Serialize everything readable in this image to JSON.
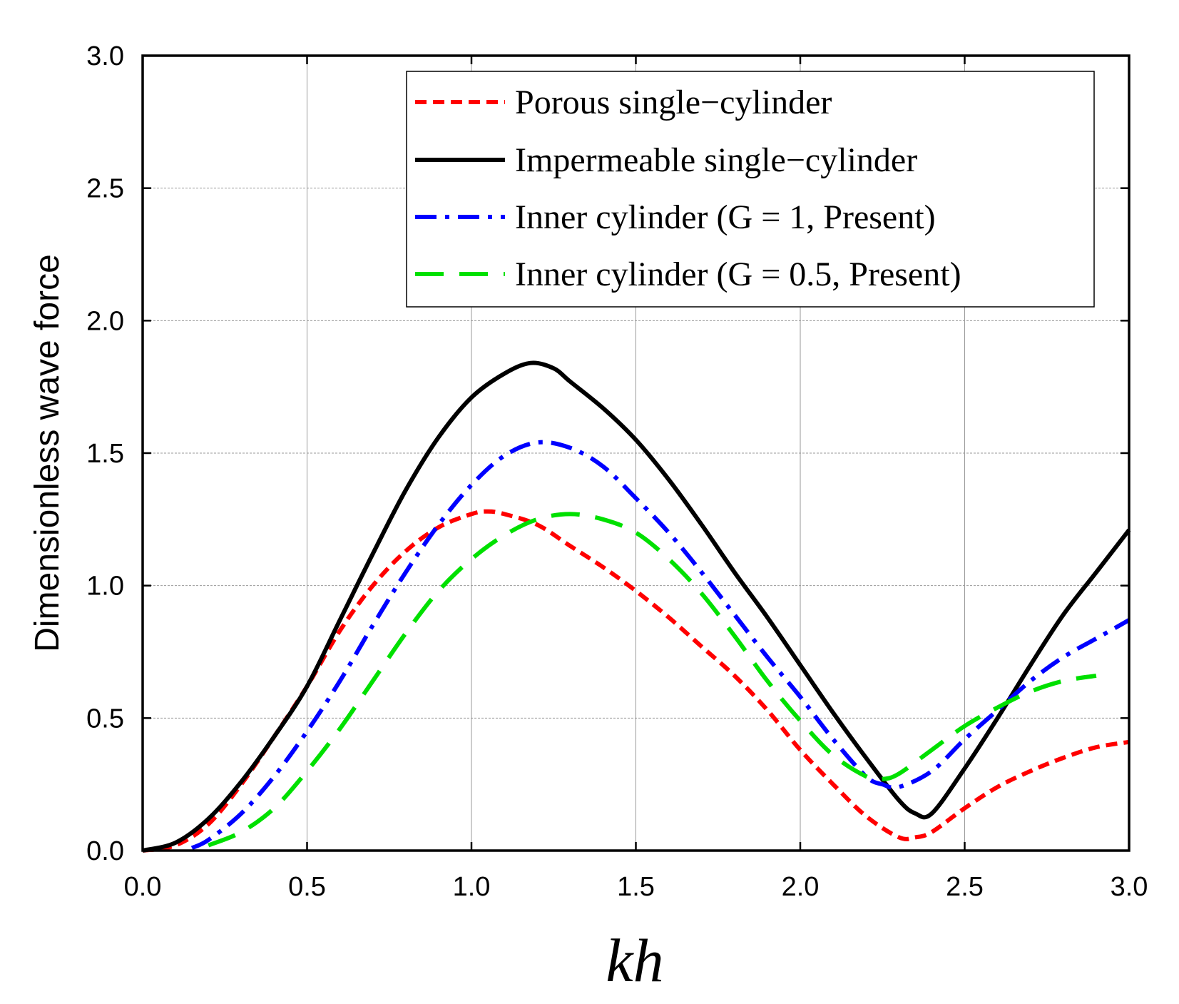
{
  "chart_data": {
    "type": "line",
    "xlabel": "kh",
    "ylabel": "Dimensionless wave force",
    "xlim": [
      0.0,
      3.0
    ],
    "ylim": [
      0.0,
      3.0
    ],
    "xticks": [
      "0.0",
      "0.5",
      "1.0",
      "1.5",
      "2.0",
      "2.5",
      "3.0"
    ],
    "yticks": [
      "0.0",
      "0.5",
      "1.0",
      "1.5",
      "2.0",
      "2.5",
      "3.0"
    ],
    "grid": true,
    "legend_position": "top-right",
    "series": [
      {
        "name": "Porous single−cylinder",
        "color": "#ff0000",
        "style": "dashed",
        "x": [
          0.0,
          0.1,
          0.2,
          0.3,
          0.4,
          0.5,
          0.6,
          0.7,
          0.8,
          0.9,
          1.0,
          1.05,
          1.1,
          1.2,
          1.3,
          1.4,
          1.5,
          1.6,
          1.7,
          1.8,
          1.9,
          2.0,
          2.1,
          2.2,
          2.3,
          2.35,
          2.4,
          2.5,
          2.6,
          2.7,
          2.8,
          2.9,
          3.0
        ],
        "y": [
          0.0,
          0.02,
          0.1,
          0.25,
          0.43,
          0.62,
          0.83,
          1.0,
          1.13,
          1.22,
          1.27,
          1.28,
          1.27,
          1.23,
          1.15,
          1.07,
          0.98,
          0.88,
          0.77,
          0.66,
          0.53,
          0.38,
          0.25,
          0.13,
          0.05,
          0.05,
          0.07,
          0.16,
          0.24,
          0.3,
          0.35,
          0.39,
          0.41
        ]
      },
      {
        "name": "Impermeable single−cylinder",
        "color": "#000000",
        "style": "solid",
        "x": [
          0.0,
          0.1,
          0.2,
          0.3,
          0.4,
          0.5,
          0.6,
          0.7,
          0.8,
          0.9,
          1.0,
          1.1,
          1.18,
          1.25,
          1.3,
          1.4,
          1.5,
          1.6,
          1.7,
          1.8,
          1.9,
          2.0,
          2.1,
          2.2,
          2.3,
          2.35,
          2.4,
          2.5,
          2.6,
          2.7,
          2.8,
          2.9,
          3.0
        ],
        "y": [
          0.0,
          0.03,
          0.12,
          0.26,
          0.43,
          0.62,
          0.87,
          1.12,
          1.36,
          1.56,
          1.71,
          1.8,
          1.84,
          1.82,
          1.77,
          1.67,
          1.55,
          1.4,
          1.23,
          1.05,
          0.88,
          0.7,
          0.52,
          0.35,
          0.19,
          0.14,
          0.14,
          0.31,
          0.5,
          0.7,
          0.89,
          1.05,
          1.21
        ]
      },
      {
        "name": "Inner cylinder (G = 1, Present)",
        "color": "#0000ff",
        "style": "dashdot",
        "x": [
          0.15,
          0.2,
          0.3,
          0.4,
          0.5,
          0.6,
          0.7,
          0.8,
          0.9,
          1.0,
          1.1,
          1.2,
          1.3,
          1.4,
          1.5,
          1.6,
          1.7,
          1.8,
          1.9,
          2.0,
          2.1,
          2.2,
          2.25,
          2.3,
          2.4,
          2.5,
          2.6,
          2.7,
          2.8,
          2.9,
          3.0
        ],
        "y": [
          0.01,
          0.04,
          0.14,
          0.28,
          0.45,
          0.64,
          0.85,
          1.05,
          1.23,
          1.38,
          1.49,
          1.54,
          1.52,
          1.45,
          1.33,
          1.2,
          1.05,
          0.89,
          0.73,
          0.58,
          0.42,
          0.28,
          0.25,
          0.24,
          0.3,
          0.42,
          0.53,
          0.64,
          0.73,
          0.8,
          0.87
        ]
      },
      {
        "name": "Inner cylinder (G = 0.5, Present)",
        "color": "#00e000",
        "style": "longdash",
        "x": [
          0.2,
          0.3,
          0.4,
          0.5,
          0.6,
          0.7,
          0.8,
          0.9,
          1.0,
          1.1,
          1.2,
          1.3,
          1.4,
          1.5,
          1.6,
          1.7,
          1.8,
          1.9,
          2.0,
          2.1,
          2.2,
          2.25,
          2.3,
          2.4,
          2.5,
          2.6,
          2.7,
          2.8,
          2.9
        ],
        "y": [
          0.02,
          0.07,
          0.16,
          0.3,
          0.46,
          0.64,
          0.82,
          0.98,
          1.1,
          1.19,
          1.25,
          1.27,
          1.25,
          1.2,
          1.1,
          0.97,
          0.81,
          0.64,
          0.49,
          0.36,
          0.28,
          0.27,
          0.29,
          0.38,
          0.47,
          0.54,
          0.6,
          0.64,
          0.66
        ]
      }
    ]
  }
}
